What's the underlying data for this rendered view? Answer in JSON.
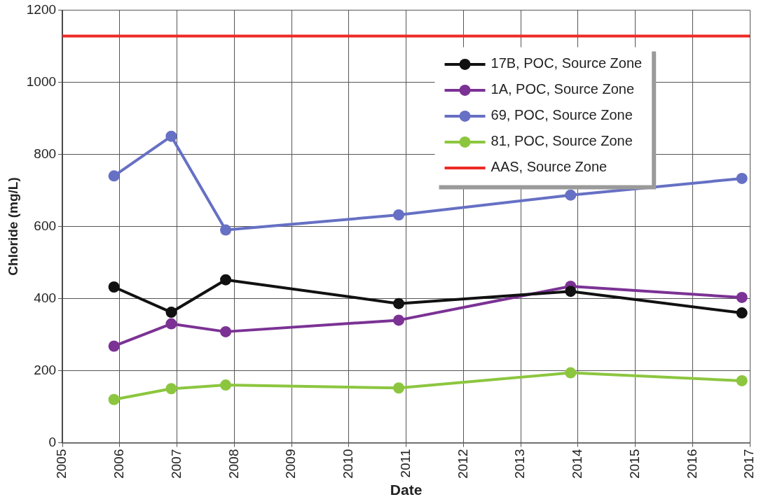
{
  "chart_data": {
    "type": "line",
    "xlabel": "Date",
    "ylabel": "Chloride (mg/L)",
    "x": [
      2005.9,
      2006.9,
      2007.85,
      2010.87,
      2013.87,
      2016.86
    ],
    "xlim": [
      2005,
      2017
    ],
    "xticks": [
      2005,
      2006,
      2007,
      2008,
      2009,
      2010,
      2011,
      2012,
      2013,
      2014,
      2015,
      2016,
      2017
    ],
    "ylim": [
      0,
      1200
    ],
    "yticks": [
      0,
      200,
      400,
      600,
      800,
      1000,
      1200
    ],
    "grid": true,
    "legend": "top right",
    "marker": "circle",
    "line_style": "solid",
    "series": [
      {
        "name": "17B, POC, Source Zone",
        "color": "#111111",
        "values": [
          432,
          362,
          452,
          386,
          420,
          360
        ]
      },
      {
        "name": "1A, POC, Source Zone",
        "color": "#7b3294",
        "values": [
          268,
          330,
          308,
          340,
          434,
          403
        ]
      },
      {
        "name": "69, POC, Source Zone",
        "color": "#6670c4",
        "values": [
          740,
          850,
          590,
          632,
          687,
          733
        ]
      },
      {
        "name": "81, POC, Source Zone",
        "color": "#8cc63f",
        "values": [
          120,
          150,
          160,
          152,
          194,
          172
        ]
      },
      {
        "name": "AAS, Source Zone",
        "color": "#ee2a24",
        "marker": "none",
        "x": [
          2005,
          2017
        ],
        "values": [
          1128,
          1128
        ]
      }
    ]
  }
}
